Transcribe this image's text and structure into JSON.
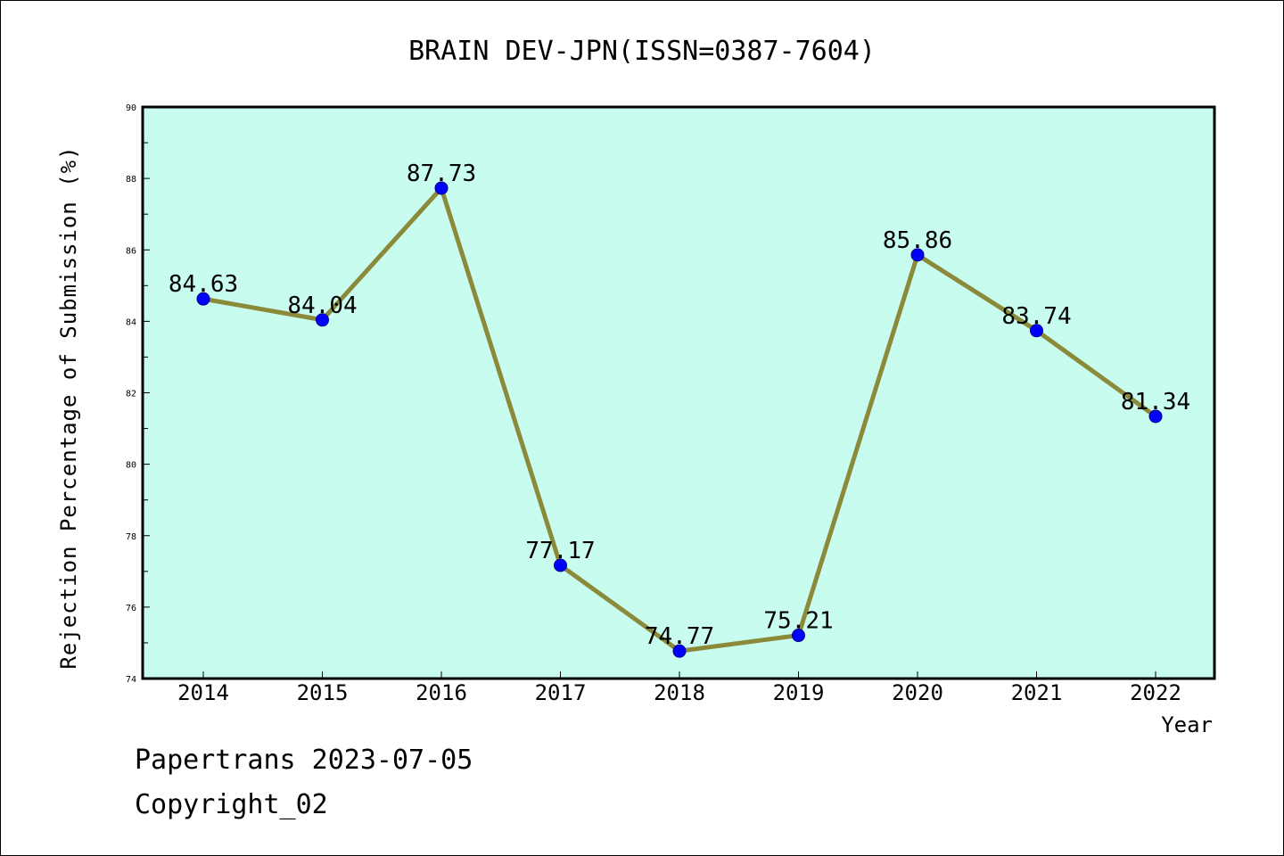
{
  "chart_data": {
    "type": "line",
    "title": "BRAIN DEV-JPN(ISSN=0387-7604)",
    "xlabel": "Year",
    "ylabel": "Rejection Percentage of Submission (%)",
    "categories": [
      "2014",
      "2015",
      "2016",
      "2017",
      "2018",
      "2019",
      "2020",
      "2021",
      "2022"
    ],
    "values": [
      84.63,
      84.04,
      87.73,
      77.17,
      74.77,
      75.21,
      85.86,
      83.74,
      81.34
    ],
    "data_labels": [
      "84.63",
      "84.04",
      "87.73",
      "77.17",
      "74.77",
      "75.21",
      "85.86",
      "83.74",
      "81.34"
    ],
    "ylim": [
      74,
      90
    ],
    "yticks": [
      "74",
      "76",
      "78",
      "80",
      "82",
      "84",
      "86",
      "88",
      "90"
    ],
    "grid": false,
    "legend": "none",
    "colors": {
      "plot_background": "#c8fcee",
      "line": "#8b8a3a",
      "marker": "#0000ff",
      "axis": "#000000"
    }
  },
  "footer": {
    "line1": "Papertrans 2023-07-05",
    "line2": "Copyright_02"
  }
}
